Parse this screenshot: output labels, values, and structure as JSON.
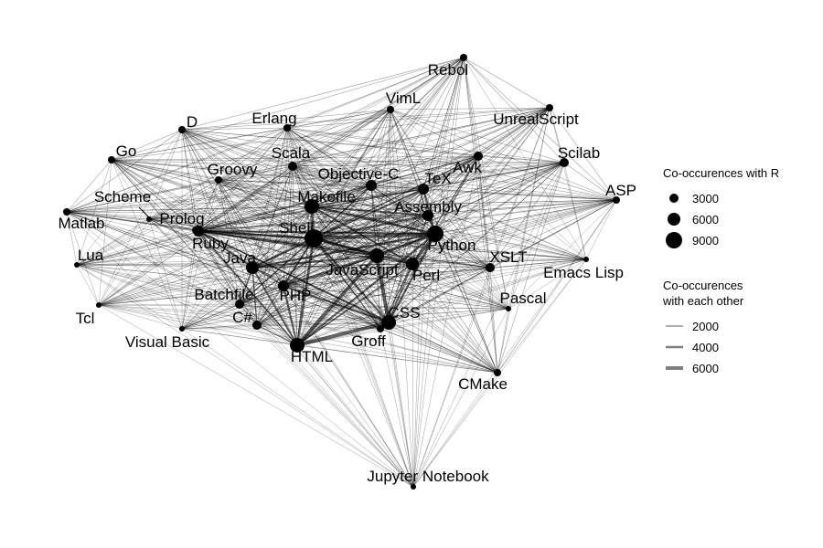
{
  "nodes": [
    {
      "id": "Rebol",
      "size": 4
    },
    {
      "id": "VimL",
      "size": 4
    },
    {
      "id": "UnrealScript",
      "size": 4
    },
    {
      "id": "D",
      "size": 4
    },
    {
      "id": "Erlang",
      "size": 4
    },
    {
      "id": "Go",
      "size": 4
    },
    {
      "id": "Scala",
      "size": 5
    },
    {
      "id": "Scilab",
      "size": 5
    },
    {
      "id": "Groovy",
      "size": 4
    },
    {
      "id": "Objective-C",
      "size": 6
    },
    {
      "id": "Awk",
      "size": 5
    },
    {
      "id": "TeX",
      "size": 6
    },
    {
      "id": "ASP",
      "size": 4
    },
    {
      "id": "Scheme",
      "size": 3
    },
    {
      "id": "Makefile",
      "size": 8
    },
    {
      "id": "Assembly",
      "size": 6
    },
    {
      "id": "Matlab",
      "size": 4
    },
    {
      "id": "Prolog",
      "size": 4
    },
    {
      "id": "Shell",
      "size": 10
    },
    {
      "id": "Python",
      "size": 9
    },
    {
      "id": "Ruby",
      "size": 6
    },
    {
      "id": "Lua",
      "size": 3
    },
    {
      "id": "XSLT",
      "size": 5
    },
    {
      "id": "Java",
      "size": 7
    },
    {
      "id": "JavaScript",
      "size": 8
    },
    {
      "id": "Perl",
      "size": 7
    },
    {
      "id": "Emacs Lisp",
      "size": 3
    },
    {
      "id": "Batchfile",
      "size": 5
    },
    {
      "id": "PHP",
      "size": 6
    },
    {
      "id": "Pascal",
      "size": 3
    },
    {
      "id": "Tcl",
      "size": 3
    },
    {
      "id": "C#",
      "size": 5
    },
    {
      "id": "CSS",
      "size": 8
    },
    {
      "id": "Visual Basic",
      "size": 3
    },
    {
      "id": "Groff",
      "size": 4
    },
    {
      "id": "HTML",
      "size": 8
    },
    {
      "id": "CMake",
      "size": 4
    },
    {
      "id": "Jupyter Notebook",
      "size": 3
    }
  ],
  "legend": {
    "nodes_title": "Co-occurences with R",
    "node_sizes": [
      {
        "label": "3000",
        "size": 5
      },
      {
        "label": "6000",
        "size": 7
      },
      {
        "label": "9000",
        "size": 9
      }
    ],
    "edges_title_line1": "Co-occurences",
    "edges_title_line2": "with each other",
    "edge_widths": [
      {
        "label": "2000",
        "width": 1.2
      },
      {
        "label": "4000",
        "width": 2.6
      },
      {
        "label": "6000",
        "width": 4
      }
    ]
  }
}
